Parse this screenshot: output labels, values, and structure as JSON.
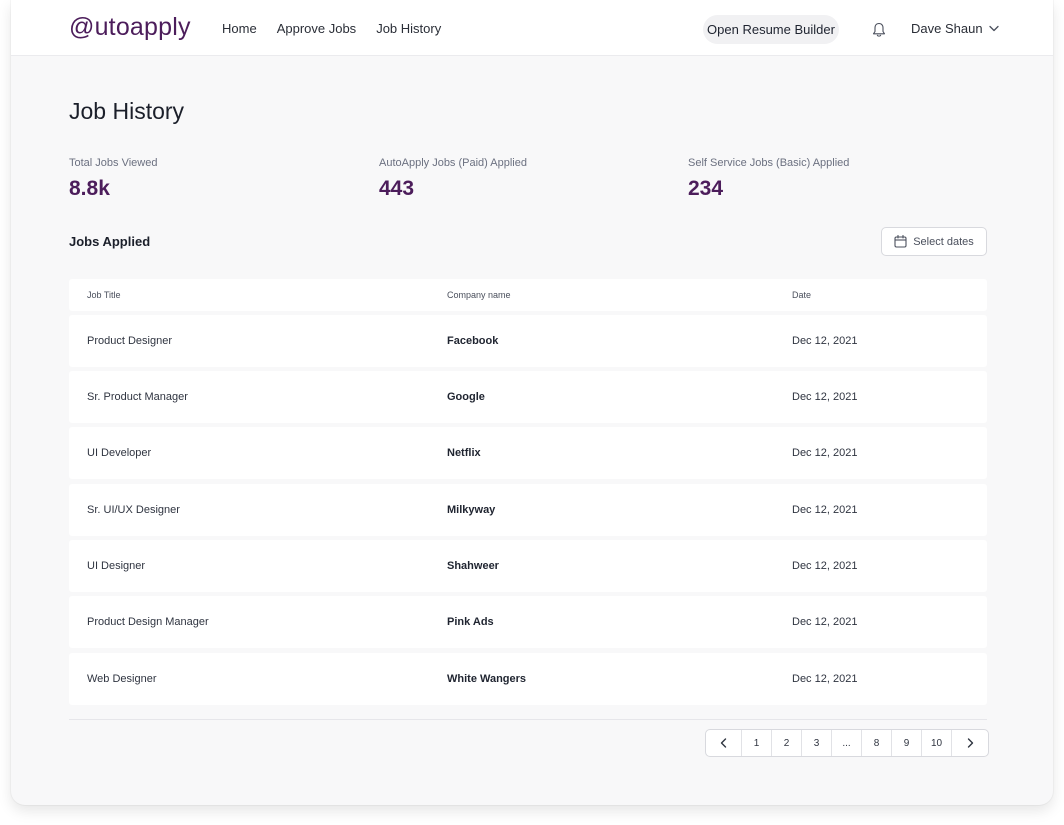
{
  "header": {
    "logo": "@utoapply",
    "nav": [
      "Home",
      "Approve Jobs",
      "Job History"
    ],
    "resume_button": "Open Resume Builder",
    "user_name": "Dave Shaun"
  },
  "page_title": "Job History",
  "stats": [
    {
      "label": "Total Jobs Viewed",
      "value": "8.8k"
    },
    {
      "label": "AutoApply Jobs (Paid) Applied",
      "value": "443"
    },
    {
      "label": "Self Service Jobs (Basic) Applied",
      "value": "234"
    }
  ],
  "section_title": "Jobs Applied",
  "select_dates_label": "Select dates",
  "table": {
    "headers": [
      "Job Title",
      "Company name",
      "Date"
    ],
    "rows": [
      [
        "Product Designer",
        "Facebook",
        "Dec 12, 2021"
      ],
      [
        "Sr. Product Manager",
        "Google",
        "Dec 12, 2021"
      ],
      [
        "UI Developer",
        "Netflix",
        "Dec 12, 2021"
      ],
      [
        "Sr. UI/UX Designer",
        "Milkyway",
        "Dec 12, 2021"
      ],
      [
        "UI Designer",
        "Shahweer",
        "Dec 12, 2021"
      ],
      [
        "Product Design Manager",
        "Pink Ads",
        "Dec 12, 2021"
      ],
      [
        "Web Designer",
        "White Wangers",
        "Dec 12, 2021"
      ]
    ]
  },
  "pagination": {
    "prev": "‹",
    "pages": [
      "1",
      "2",
      "3",
      "...",
      "8",
      "9",
      "10"
    ],
    "next": "›"
  },
  "colors": {
    "brand": "#4c1d5b",
    "background": "#f8f8f9"
  },
  "icons": [
    "bell-icon",
    "chevron-down-icon",
    "calendar-icon",
    "chevron-left-icon",
    "chevron-right-icon"
  ]
}
